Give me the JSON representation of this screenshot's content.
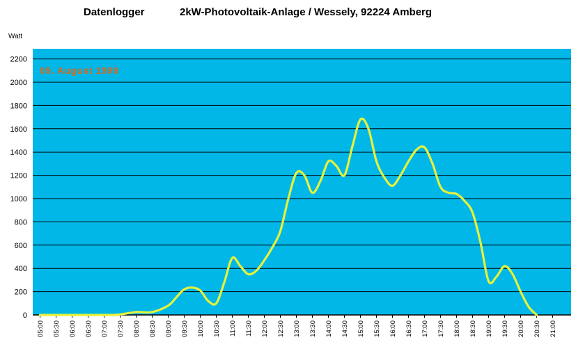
{
  "colors": {
    "plot_background": "#00B7E8",
    "series_line": "#E6F23A",
    "gridline": "#000000",
    "annotation": "#D2691E"
  },
  "chart_data": {
    "type": "line",
    "title_left": "Datenlogger",
    "title_right": "2kW-Photovoltaik-Anlage / Wessely, 92224 Amberg",
    "ylabel": "Watt",
    "annotation": "09. August 1999",
    "ylim": [
      0,
      2300
    ],
    "yticks": [
      0,
      200,
      400,
      600,
      800,
      1000,
      1200,
      1400,
      1600,
      1800,
      2000,
      2200
    ],
    "xlim": [
      5.0,
      21.5
    ],
    "grid": true,
    "legend": "none",
    "xtick_labels": [
      "05:00",
      "05:30",
      "06:00",
      "06:30",
      "07:00",
      "07:30",
      "08:00",
      "08:30",
      "09:00",
      "09:30",
      "10:00",
      "10:30",
      "11:00",
      "11:30",
      "12:00",
      "12:30",
      "13:00",
      "13:30",
      "14:00",
      "14:30",
      "15:00",
      "15:30",
      "16:00",
      "16:30",
      "17:00",
      "17:30",
      "18:00",
      "18:30",
      "19:00",
      "19:30",
      "20:00",
      "20:30",
      "21:00"
    ],
    "series": [
      {
        "x": [
          5.0,
          7.0,
          7.5,
          8.0,
          8.5,
          9.0,
          9.25,
          9.5,
          9.75,
          10.0,
          10.25,
          10.5,
          10.75,
          11.0,
          11.25,
          11.5,
          11.75,
          12.0,
          12.25,
          12.5,
          12.75,
          13.0,
          13.25,
          13.5,
          13.75,
          14.0,
          14.25,
          14.5,
          14.75,
          15.0,
          15.25,
          15.5,
          15.75,
          16.0,
          16.25,
          16.5,
          16.75,
          17.0,
          17.25,
          17.5,
          17.75,
          18.0,
          18.25,
          18.5,
          18.75,
          19.0,
          19.25,
          19.5,
          19.75,
          20.0,
          20.25,
          20.5
        ],
        "y": [
          0,
          0,
          5,
          25,
          25,
          80,
          150,
          220,
          235,
          210,
          120,
          100,
          280,
          490,
          420,
          350,
          380,
          470,
          580,
          720,
          1000,
          1220,
          1200,
          1050,
          1150,
          1320,
          1280,
          1200,
          1450,
          1680,
          1600,
          1320,
          1180,
          1110,
          1200,
          1320,
          1420,
          1440,
          1300,
          1100,
          1050,
          1040,
          980,
          880,
          620,
          290,
          330,
          420,
          350,
          200,
          70,
          0
        ]
      }
    ]
  }
}
